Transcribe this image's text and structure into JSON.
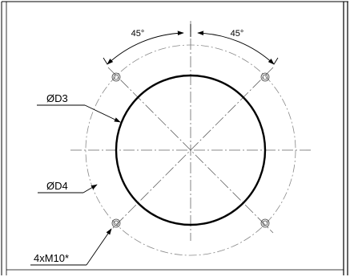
{
  "drawing": {
    "angle_left": "45°",
    "angle_right": "45°",
    "label_inner_diameter": "ØD3",
    "label_outer_diameter": "ØD4",
    "label_holes": "4xM10*"
  }
}
